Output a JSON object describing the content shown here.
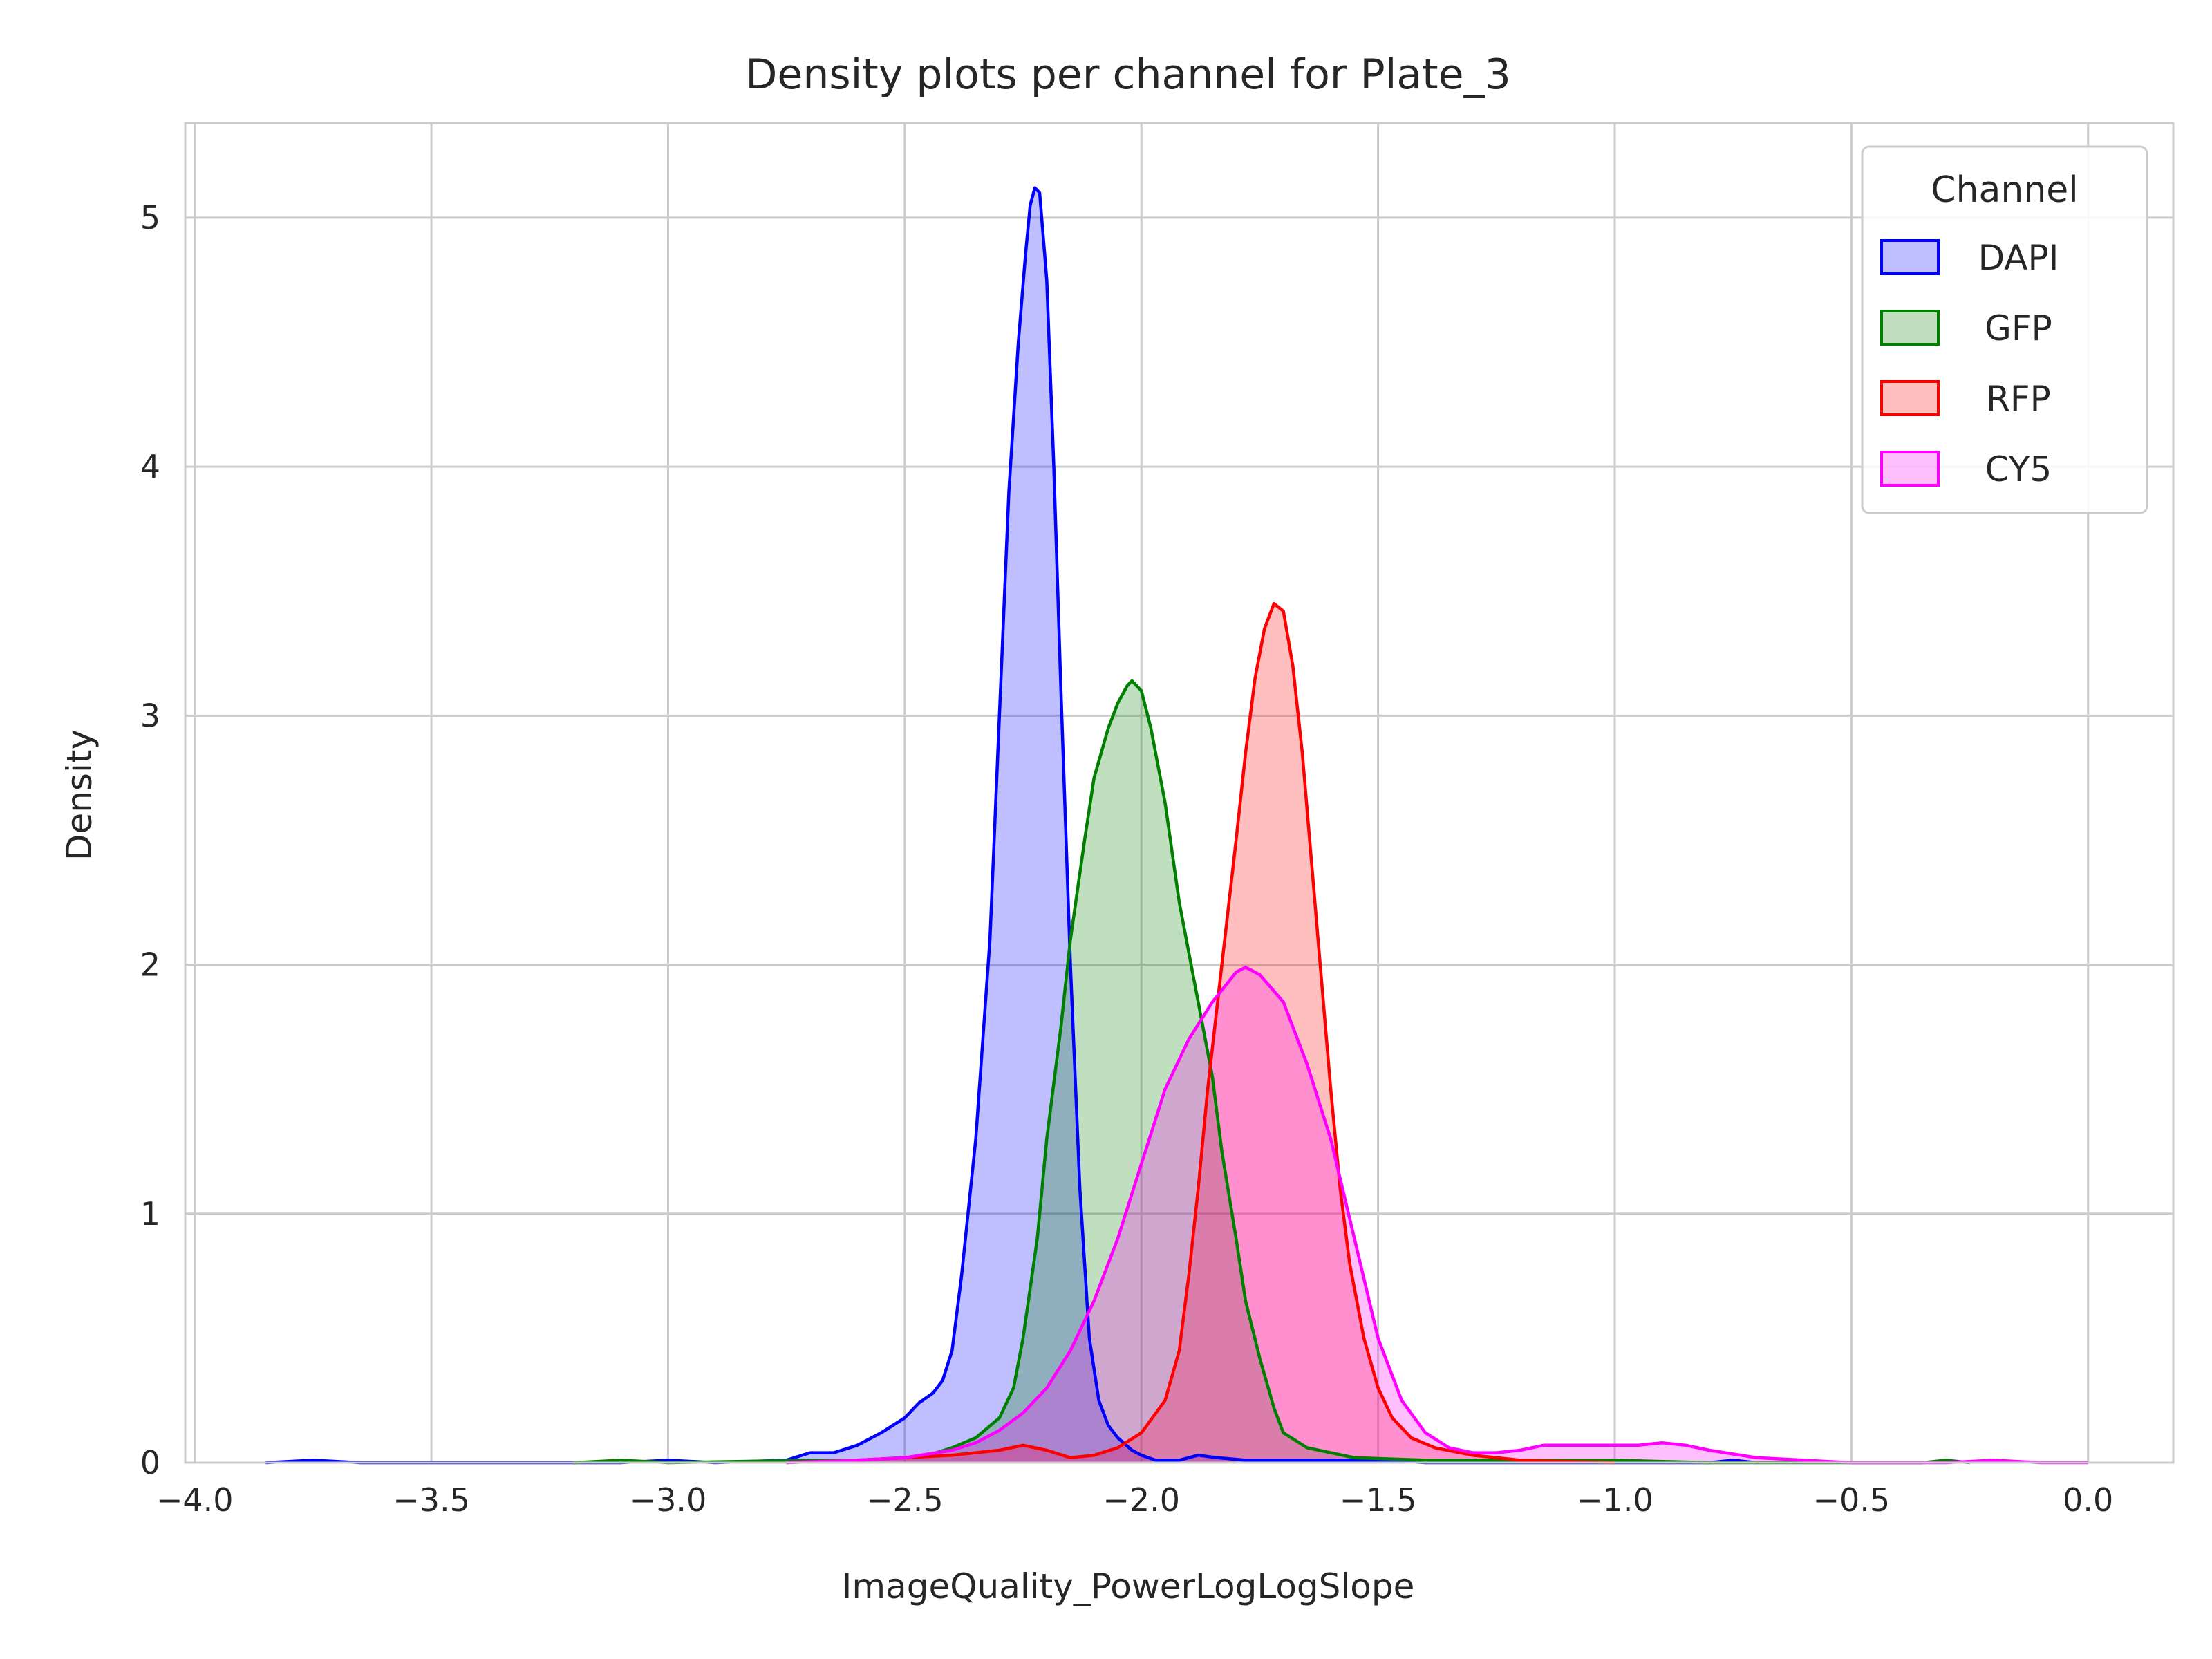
{
  "chart_data": {
    "type": "area",
    "title": "Density plots per channel for Plate_3",
    "xlabel": "ImageQuality_PowerLogLogSlope",
    "ylabel": "Density",
    "xlim": [
      -4.02,
      0.18
    ],
    "ylim": [
      0,
      5.38
    ],
    "x_ticks": [
      -4.0,
      -3.5,
      -3.0,
      -2.5,
      -2.0,
      -1.5,
      -1.0,
      -0.5,
      0.0
    ],
    "x_tick_labels": [
      "−4.0",
      "−3.5",
      "−3.0",
      "−2.5",
      "−2.0",
      "−1.5",
      "−1.0",
      "−0.5",
      "0.0"
    ],
    "y_ticks": [
      0,
      1,
      2,
      3,
      4,
      5
    ],
    "y_tick_labels": [
      "0",
      "1",
      "2",
      "3",
      "4",
      "5"
    ],
    "grid": true,
    "legend": {
      "title": "Channel",
      "placement": "top-right"
    },
    "series": [
      {
        "name": "DAPI",
        "color": "#0000ff",
        "points": [
          [
            -3.85,
            0
          ],
          [
            -3.75,
            0.01
          ],
          [
            -3.65,
            0
          ],
          [
            -3.1,
            0
          ],
          [
            -3.0,
            0.01
          ],
          [
            -2.9,
            0
          ],
          [
            -2.75,
            0.01
          ],
          [
            -2.7,
            0.04
          ],
          [
            -2.65,
            0.04
          ],
          [
            -2.6,
            0.07
          ],
          [
            -2.55,
            0.12
          ],
          [
            -2.5,
            0.18
          ],
          [
            -2.47,
            0.24
          ],
          [
            -2.44,
            0.28
          ],
          [
            -2.42,
            0.33
          ],
          [
            -2.4,
            0.45
          ],
          [
            -2.38,
            0.75
          ],
          [
            -2.35,
            1.3
          ],
          [
            -2.32,
            2.1
          ],
          [
            -2.3,
            3.0
          ],
          [
            -2.28,
            3.9
          ],
          [
            -2.26,
            4.5
          ],
          [
            -2.245,
            4.85
          ],
          [
            -2.235,
            5.05
          ],
          [
            -2.225,
            5.12
          ],
          [
            -2.215,
            5.1
          ],
          [
            -2.2,
            4.75
          ],
          [
            -2.185,
            4.0
          ],
          [
            -2.17,
            3.1
          ],
          [
            -2.15,
            2.0
          ],
          [
            -2.13,
            1.1
          ],
          [
            -2.11,
            0.5
          ],
          [
            -2.09,
            0.25
          ],
          [
            -2.07,
            0.15
          ],
          [
            -2.05,
            0.1
          ],
          [
            -2.02,
            0.05
          ],
          [
            -2.0,
            0.03
          ],
          [
            -1.97,
            0.01
          ],
          [
            -1.92,
            0.01
          ],
          [
            -1.88,
            0.03
          ],
          [
            -1.84,
            0.02
          ],
          [
            -1.78,
            0.01
          ],
          [
            -1.6,
            0.01
          ],
          [
            -1.5,
            0.01
          ],
          [
            -1.4,
            0
          ],
          [
            -0.8,
            0
          ],
          [
            -0.75,
            0.01
          ],
          [
            -0.7,
            0
          ]
        ]
      },
      {
        "name": "GFP",
        "color": "#008000",
        "points": [
          [
            -3.2,
            0
          ],
          [
            -3.1,
            0.01
          ],
          [
            -3.0,
            0
          ],
          [
            -2.7,
            0.01
          ],
          [
            -2.6,
            0.01
          ],
          [
            -2.5,
            0.02
          ],
          [
            -2.45,
            0.03
          ],
          [
            -2.4,
            0.06
          ],
          [
            -2.35,
            0.1
          ],
          [
            -2.3,
            0.18
          ],
          [
            -2.27,
            0.3
          ],
          [
            -2.25,
            0.5
          ],
          [
            -2.22,
            0.9
          ],
          [
            -2.2,
            1.3
          ],
          [
            -2.17,
            1.75
          ],
          [
            -2.15,
            2.1
          ],
          [
            -2.12,
            2.5
          ],
          [
            -2.1,
            2.75
          ],
          [
            -2.07,
            2.95
          ],
          [
            -2.05,
            3.05
          ],
          [
            -2.03,
            3.12
          ],
          [
            -2.02,
            3.14
          ],
          [
            -2.0,
            3.1
          ],
          [
            -1.98,
            2.95
          ],
          [
            -1.95,
            2.65
          ],
          [
            -1.92,
            2.25
          ],
          [
            -1.9,
            2.05
          ],
          [
            -1.88,
            1.85
          ],
          [
            -1.85,
            1.55
          ],
          [
            -1.83,
            1.25
          ],
          [
            -1.8,
            0.9
          ],
          [
            -1.78,
            0.65
          ],
          [
            -1.75,
            0.42
          ],
          [
            -1.72,
            0.22
          ],
          [
            -1.7,
            0.12
          ],
          [
            -1.65,
            0.06
          ],
          [
            -1.6,
            0.04
          ],
          [
            -1.55,
            0.02
          ],
          [
            -1.4,
            0.01
          ],
          [
            -1.2,
            0.01
          ],
          [
            -1.0,
            0.01
          ],
          [
            -0.8,
            0
          ],
          [
            -0.35,
            0
          ],
          [
            -0.3,
            0.01
          ],
          [
            -0.25,
            0
          ]
        ]
      },
      {
        "name": "RFP",
        "color": "#ff0000",
        "points": [
          [
            -2.75,
            0
          ],
          [
            -2.6,
            0.01
          ],
          [
            -2.5,
            0.02
          ],
          [
            -2.4,
            0.03
          ],
          [
            -2.3,
            0.05
          ],
          [
            -2.25,
            0.07
          ],
          [
            -2.2,
            0.05
          ],
          [
            -2.15,
            0.02
          ],
          [
            -2.1,
            0.03
          ],
          [
            -2.05,
            0.06
          ],
          [
            -2.0,
            0.12
          ],
          [
            -1.95,
            0.25
          ],
          [
            -1.92,
            0.45
          ],
          [
            -1.9,
            0.75
          ],
          [
            -1.88,
            1.1
          ],
          [
            -1.86,
            1.5
          ],
          [
            -1.83,
            2.0
          ],
          [
            -1.8,
            2.5
          ],
          [
            -1.78,
            2.85
          ],
          [
            -1.76,
            3.15
          ],
          [
            -1.74,
            3.35
          ],
          [
            -1.72,
            3.45
          ],
          [
            -1.7,
            3.42
          ],
          [
            -1.68,
            3.2
          ],
          [
            -1.66,
            2.85
          ],
          [
            -1.64,
            2.4
          ],
          [
            -1.62,
            1.95
          ],
          [
            -1.6,
            1.5
          ],
          [
            -1.58,
            1.1
          ],
          [
            -1.56,
            0.8
          ],
          [
            -1.53,
            0.5
          ],
          [
            -1.5,
            0.3
          ],
          [
            -1.47,
            0.18
          ],
          [
            -1.43,
            0.1
          ],
          [
            -1.38,
            0.06
          ],
          [
            -1.3,
            0.03
          ],
          [
            -1.2,
            0.01
          ],
          [
            -1.0,
            0
          ]
        ]
      },
      {
        "name": "CY5",
        "color": "#ff00ff",
        "points": [
          [
            -2.75,
            0
          ],
          [
            -2.6,
            0.01
          ],
          [
            -2.5,
            0.02
          ],
          [
            -2.4,
            0.05
          ],
          [
            -2.35,
            0.08
          ],
          [
            -2.3,
            0.13
          ],
          [
            -2.25,
            0.2
          ],
          [
            -2.2,
            0.3
          ],
          [
            -2.15,
            0.45
          ],
          [
            -2.1,
            0.65
          ],
          [
            -2.05,
            0.9
          ],
          [
            -2.0,
            1.2
          ],
          [
            -1.95,
            1.5
          ],
          [
            -1.9,
            1.7
          ],
          [
            -1.85,
            1.85
          ],
          [
            -1.8,
            1.97
          ],
          [
            -1.78,
            1.99
          ],
          [
            -1.75,
            1.96
          ],
          [
            -1.7,
            1.85
          ],
          [
            -1.65,
            1.6
          ],
          [
            -1.6,
            1.3
          ],
          [
            -1.55,
            0.9
          ],
          [
            -1.5,
            0.5
          ],
          [
            -1.45,
            0.25
          ],
          [
            -1.4,
            0.12
          ],
          [
            -1.35,
            0.06
          ],
          [
            -1.3,
            0.04
          ],
          [
            -1.25,
            0.04
          ],
          [
            -1.2,
            0.05
          ],
          [
            -1.15,
            0.07
          ],
          [
            -1.1,
            0.07
          ],
          [
            -1.0,
            0.07
          ],
          [
            -0.95,
            0.07
          ],
          [
            -0.9,
            0.08
          ],
          [
            -0.85,
            0.07
          ],
          [
            -0.8,
            0.05
          ],
          [
            -0.7,
            0.02
          ],
          [
            -0.6,
            0.01
          ],
          [
            -0.5,
            0
          ],
          [
            -0.3,
            0
          ],
          [
            -0.2,
            0.01
          ],
          [
            -0.1,
            0
          ],
          [
            0.0,
            0
          ]
        ]
      }
    ]
  }
}
